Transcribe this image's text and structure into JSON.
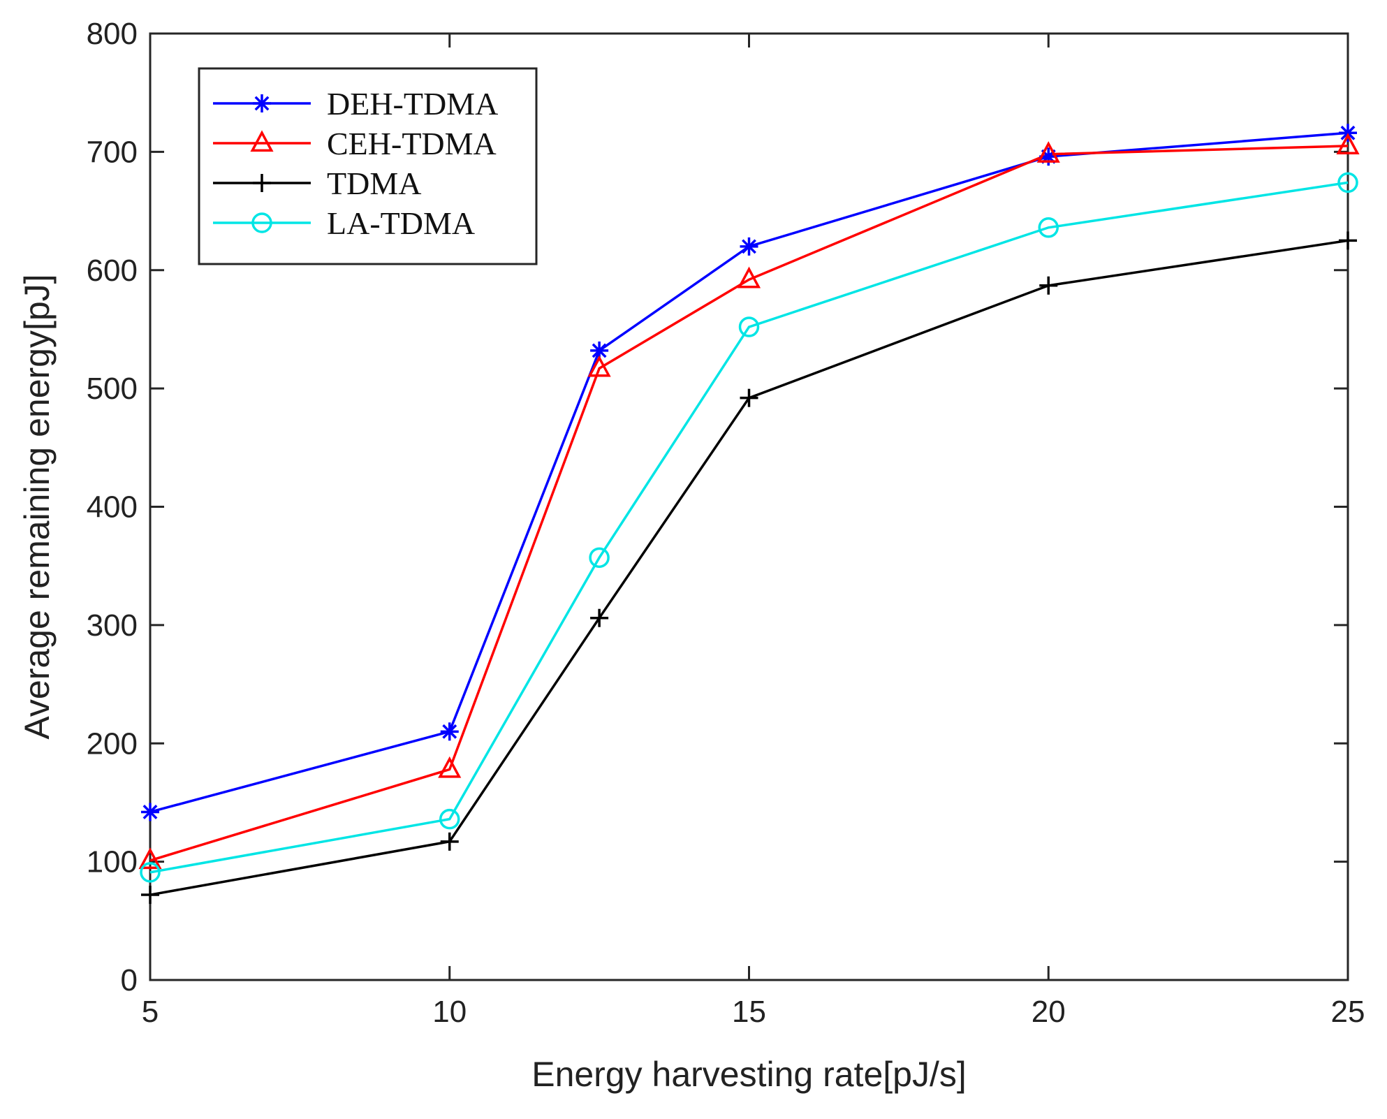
{
  "chart_data": {
    "type": "line",
    "title": "",
    "xlabel": "Energy harvesting rate[pJ/s]",
    "ylabel": "Average remaining energy[pJ]",
    "xlim": [
      5,
      25
    ],
    "ylim": [
      0,
      800
    ],
    "xticks": [
      "5",
      "10",
      "15",
      "20",
      "25"
    ],
    "yticks": [
      "0",
      "100",
      "200",
      "300",
      "400",
      "500",
      "600",
      "700",
      "800"
    ],
    "x": [
      5,
      10,
      12.5,
      15,
      20,
      25
    ],
    "grid": false,
    "legend_position": "top-left",
    "series": [
      {
        "name": "DEH-TDMA",
        "color": "#0000ff",
        "marker": "asterisk",
        "values": [
          142,
          210,
          532,
          620,
          696,
          716
        ]
      },
      {
        "name": "CEH-TDMA",
        "color": "#ff0000",
        "marker": "triangle",
        "values": [
          101,
          178,
          517,
          592,
          698,
          705
        ]
      },
      {
        "name": "TDMA",
        "color": "#000000",
        "marker": "plus",
        "values": [
          72,
          117,
          306,
          492,
          587,
          625
        ]
      },
      {
        "name": "LA-TDMA",
        "color": "#00e5e5",
        "marker": "circle",
        "values": [
          91,
          136,
          357,
          552,
          636,
          674
        ]
      }
    ]
  }
}
